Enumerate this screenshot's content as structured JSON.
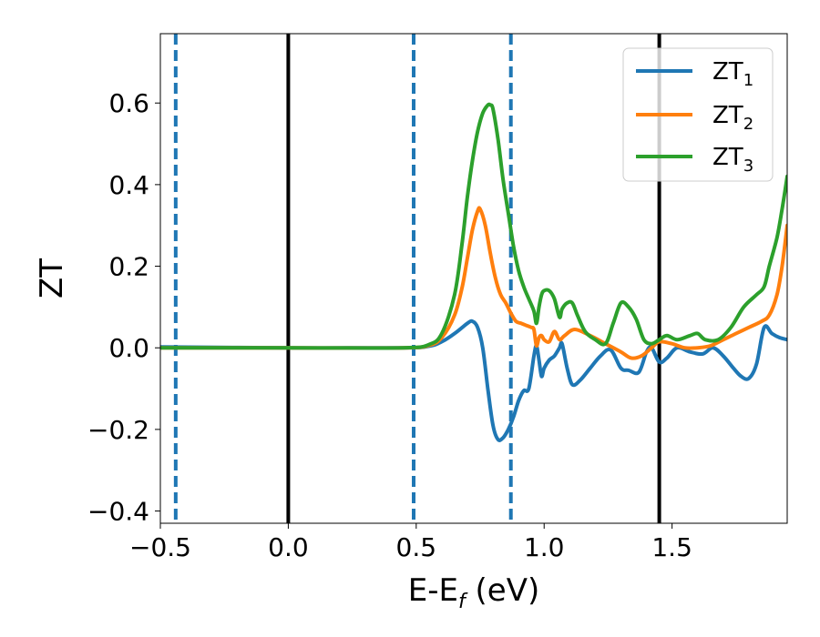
{
  "chart_data": {
    "type": "line",
    "xlabel_main": "E-E",
    "xlabel_sub": "f",
    "xlabel_unit": " (eV)",
    "ylabel": "ZT",
    "xlim": [
      -0.5,
      1.95
    ],
    "ylim": [
      -0.43,
      0.77
    ],
    "xticks": [
      {
        "value": -0.5,
        "label": "−0.5"
      },
      {
        "value": 0.0,
        "label": "0.0"
      },
      {
        "value": 0.5,
        "label": "0.5"
      },
      {
        "value": 1.0,
        "label": "1.0"
      },
      {
        "value": 1.5,
        "label": "1.5"
      }
    ],
    "yticks": [
      {
        "value": -0.4,
        "label": "−0.4"
      },
      {
        "value": -0.2,
        "label": "−0.2"
      },
      {
        "value": 0.0,
        "label": "0.0"
      },
      {
        "value": 0.2,
        "label": "0.2"
      },
      {
        "value": 0.4,
        "label": "0.4"
      },
      {
        "value": 0.6,
        "label": "0.6"
      }
    ],
    "vlines_solid": [
      0.0,
      1.45
    ],
    "vlines_dashed": [
      -0.44,
      0.49,
      0.87
    ],
    "grid": false,
    "legend_position": "top-right",
    "series": [
      {
        "name_main": "ZT",
        "name_sub": "1",
        "color": "#1f77b4",
        "x": [
          -0.5,
          0.0,
          0.45,
          0.55,
          0.6,
          0.65,
          0.7,
          0.72,
          0.74,
          0.76,
          0.78,
          0.8,
          0.82,
          0.84,
          0.86,
          0.88,
          0.9,
          0.92,
          0.94,
          0.96,
          0.97,
          0.98,
          0.99,
          1.0,
          1.02,
          1.04,
          1.06,
          1.07,
          1.09,
          1.11,
          1.14,
          1.18,
          1.22,
          1.26,
          1.3,
          1.33,
          1.37,
          1.4,
          1.42,
          1.45,
          1.48,
          1.52,
          1.57,
          1.62,
          1.66,
          1.7,
          1.74,
          1.77,
          1.8,
          1.83,
          1.86,
          1.89,
          1.92,
          1.95
        ],
        "y": [
          0.002,
          0.0,
          0.0,
          0.004,
          0.015,
          0.035,
          0.06,
          0.065,
          0.05,
          0.0,
          -0.1,
          -0.19,
          -0.225,
          -0.22,
          -0.2,
          -0.17,
          -0.13,
          -0.105,
          -0.1,
          -0.02,
          0.005,
          -0.03,
          -0.07,
          -0.05,
          -0.03,
          -0.02,
          0.0,
          0.01,
          -0.05,
          -0.09,
          -0.08,
          -0.05,
          -0.02,
          -0.005,
          -0.05,
          -0.055,
          -0.06,
          -0.01,
          0.0,
          -0.035,
          -0.025,
          0.0,
          -0.01,
          -0.015,
          0.0,
          -0.02,
          -0.05,
          -0.07,
          -0.075,
          -0.04,
          0.05,
          0.035,
          0.025,
          0.02
        ]
      },
      {
        "name_main": "ZT",
        "name_sub": "2",
        "color": "#ff7f0e",
        "x": [
          -0.5,
          0.0,
          0.45,
          0.55,
          0.6,
          0.65,
          0.68,
          0.7,
          0.72,
          0.74,
          0.75,
          0.77,
          0.79,
          0.81,
          0.83,
          0.85,
          0.87,
          0.89,
          0.91,
          0.93,
          0.95,
          0.96,
          0.97,
          0.98,
          0.99,
          1.0,
          1.02,
          1.04,
          1.06,
          1.08,
          1.12,
          1.18,
          1.24,
          1.3,
          1.34,
          1.38,
          1.42,
          1.45,
          1.5,
          1.55,
          1.6,
          1.65,
          1.7,
          1.75,
          1.8,
          1.85,
          1.88,
          1.91,
          1.93,
          1.95
        ],
        "y": [
          0.0,
          0.0,
          0.0,
          0.006,
          0.025,
          0.08,
          0.15,
          0.22,
          0.29,
          0.335,
          0.34,
          0.3,
          0.23,
          0.17,
          0.13,
          0.11,
          0.085,
          0.065,
          0.06,
          0.055,
          0.05,
          0.045,
          0.005,
          0.025,
          0.03,
          0.02,
          0.015,
          0.04,
          0.02,
          0.03,
          0.045,
          0.03,
          0.01,
          -0.01,
          -0.025,
          -0.02,
          0.0,
          0.015,
          0.01,
          0.0,
          0.0,
          0.005,
          0.02,
          0.035,
          0.05,
          0.065,
          0.08,
          0.13,
          0.2,
          0.3
        ]
      },
      {
        "name_main": "ZT",
        "name_sub": "3",
        "color": "#2ca02c",
        "x": [
          -0.5,
          0.0,
          0.45,
          0.55,
          0.6,
          0.65,
          0.68,
          0.7,
          0.72,
          0.74,
          0.76,
          0.78,
          0.79,
          0.8,
          0.82,
          0.84,
          0.86,
          0.88,
          0.9,
          0.92,
          0.94,
          0.96,
          0.97,
          0.98,
          0.99,
          1.0,
          1.02,
          1.04,
          1.06,
          1.07,
          1.09,
          1.11,
          1.13,
          1.16,
          1.2,
          1.24,
          1.27,
          1.3,
          1.33,
          1.36,
          1.39,
          1.42,
          1.45,
          1.48,
          1.52,
          1.57,
          1.6,
          1.63,
          1.68,
          1.73,
          1.78,
          1.83,
          1.86,
          1.88,
          1.91,
          1.93,
          1.95
        ],
        "y": [
          0.0,
          0.0,
          0.0,
          0.008,
          0.035,
          0.13,
          0.26,
          0.37,
          0.46,
          0.53,
          0.575,
          0.595,
          0.595,
          0.585,
          0.51,
          0.41,
          0.33,
          0.25,
          0.19,
          0.15,
          0.12,
          0.09,
          0.06,
          0.1,
          0.13,
          0.14,
          0.14,
          0.12,
          0.075,
          0.095,
          0.11,
          0.11,
          0.08,
          0.04,
          0.02,
          0.01,
          0.06,
          0.11,
          0.1,
          0.07,
          0.02,
          0.01,
          0.02,
          0.03,
          0.02,
          0.03,
          0.035,
          0.02,
          0.02,
          0.05,
          0.1,
          0.13,
          0.15,
          0.2,
          0.27,
          0.34,
          0.42
        ]
      }
    ]
  }
}
